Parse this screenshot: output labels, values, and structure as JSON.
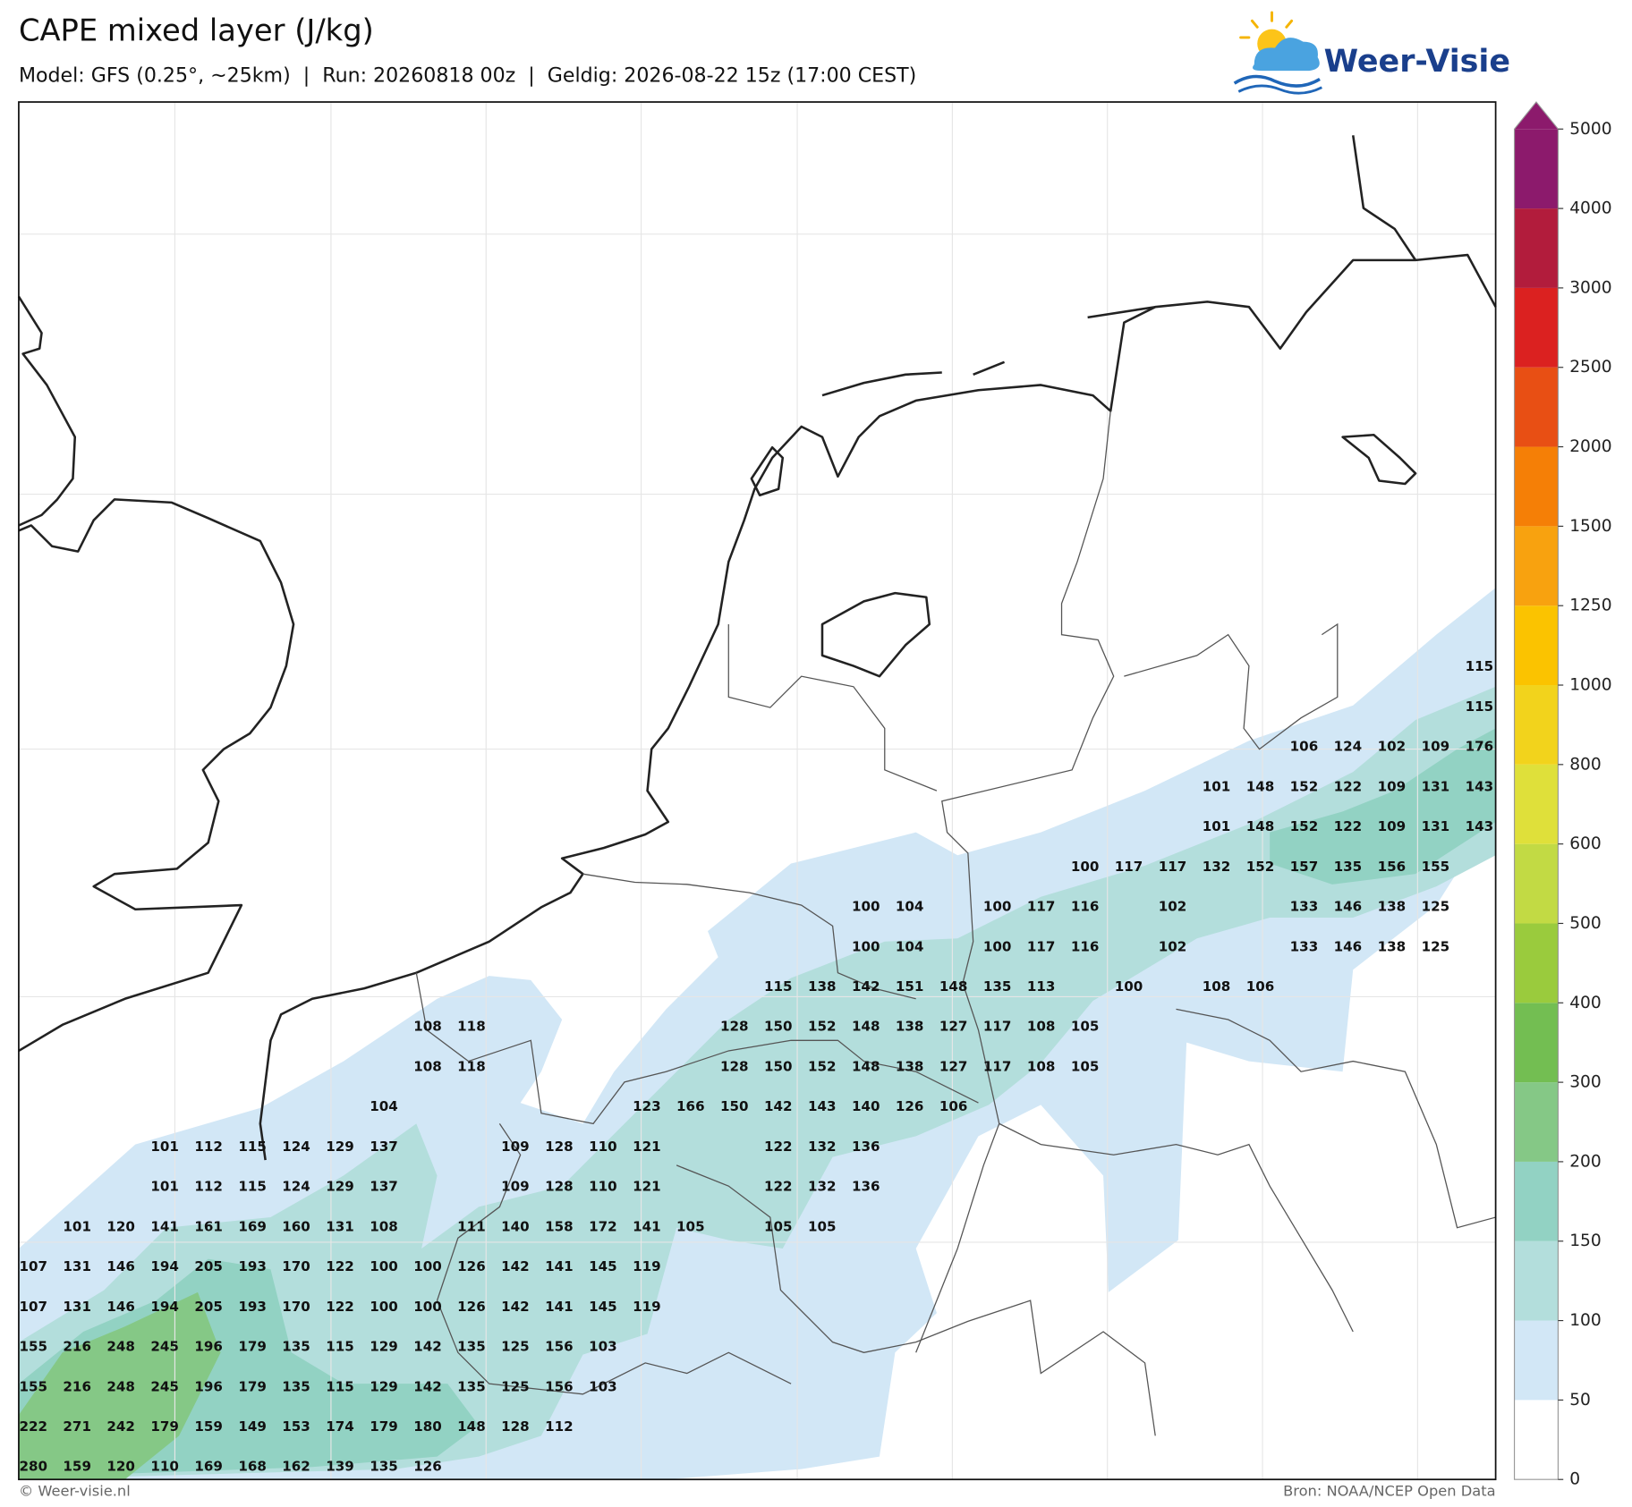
{
  "header": {
    "title": "CAPE mixed layer (J/kg)",
    "subtitle": "Model: GFS (0.25°, ~25km)  |  Run: 20260818 00z  |  Geldig: 2026-08-22 15z (17:00 CEST)",
    "logo": "Weer-Visie"
  },
  "map": {
    "grid_labels": [
      [
        null,
        null,
        null,
        null,
        null,
        null,
        null,
        null,
        null,
        null,
        null,
        null,
        null,
        null,
        null,
        null,
        null,
        null,
        null,
        null,
        null,
        null,
        null,
        null,
        null,
        null,
        null,
        null,
        null,
        null,
        null,
        null,
        null,
        115
      ],
      [
        null,
        null,
        null,
        null,
        null,
        null,
        null,
        null,
        null,
        null,
        null,
        null,
        null,
        null,
        null,
        null,
        null,
        null,
        null,
        null,
        null,
        null,
        null,
        null,
        null,
        null,
        null,
        null,
        null,
        null,
        null,
        null,
        null,
        115
      ],
      [
        null,
        null,
        null,
        null,
        null,
        null,
        null,
        null,
        null,
        null,
        null,
        null,
        null,
        null,
        null,
        null,
        null,
        null,
        null,
        null,
        null,
        null,
        null,
        null,
        null,
        null,
        null,
        null,
        null,
        106,
        124,
        102,
        109,
        176
      ],
      [
        null,
        null,
        null,
        null,
        null,
        null,
        null,
        null,
        null,
        null,
        null,
        null,
        null,
        null,
        null,
        null,
        null,
        null,
        null,
        null,
        null,
        null,
        null,
        null,
        null,
        null,
        null,
        101,
        148,
        152,
        122,
        109,
        131,
        143
      ],
      [
        null,
        null,
        null,
        null,
        null,
        null,
        null,
        null,
        null,
        null,
        null,
        null,
        null,
        null,
        null,
        null,
        null,
        null,
        null,
        null,
        null,
        null,
        null,
        null,
        null,
        null,
        null,
        101,
        148,
        152,
        122,
        109,
        131,
        143
      ],
      [
        null,
        null,
        null,
        null,
        null,
        null,
        null,
        null,
        null,
        null,
        null,
        null,
        null,
        null,
        null,
        null,
        null,
        null,
        null,
        null,
        null,
        null,
        null,
        null,
        100,
        117,
        117,
        132,
        152,
        157,
        135,
        156,
        155,
        null
      ],
      [
        null,
        null,
        null,
        null,
        null,
        null,
        null,
        null,
        null,
        null,
        null,
        null,
        null,
        null,
        null,
        null,
        null,
        null,
        null,
        100,
        104,
        null,
        100,
        117,
        116,
        null,
        102,
        null,
        null,
        133,
        146,
        138,
        125,
        null
      ],
      [
        null,
        null,
        null,
        null,
        null,
        null,
        null,
        null,
        null,
        null,
        null,
        null,
        null,
        null,
        null,
        null,
        null,
        null,
        null,
        100,
        104,
        null,
        100,
        117,
        116,
        null,
        102,
        null,
        null,
        133,
        146,
        138,
        125,
        null
      ],
      [
        null,
        null,
        null,
        null,
        null,
        null,
        null,
        null,
        null,
        null,
        null,
        null,
        null,
        null,
        null,
        null,
        null,
        115,
        138,
        142,
        151,
        148,
        135,
        113,
        null,
        100,
        null,
        108,
        106,
        null,
        null,
        null,
        null,
        null
      ],
      [
        null,
        null,
        null,
        null,
        null,
        null,
        null,
        null,
        null,
        108,
        118,
        null,
        null,
        null,
        null,
        null,
        128,
        150,
        152,
        148,
        138,
        127,
        117,
        108,
        105,
        null,
        null,
        null,
        null,
        null,
        null,
        null,
        null,
        null
      ],
      [
        null,
        null,
        null,
        null,
        null,
        null,
        null,
        null,
        null,
        108,
        118,
        null,
        null,
        null,
        null,
        null,
        128,
        150,
        152,
        148,
        138,
        127,
        117,
        108,
        105,
        null,
        null,
        null,
        null,
        null,
        null,
        null,
        null,
        null
      ],
      [
        null,
        null,
        null,
        null,
        null,
        null,
        null,
        null,
        104,
        null,
        null,
        null,
        null,
        null,
        123,
        166,
        150,
        142,
        143,
        140,
        126,
        106,
        null,
        null,
        null,
        null,
        null,
        null,
        null,
        null,
        null,
        null,
        null,
        null
      ],
      [
        null,
        null,
        null,
        101,
        112,
        115,
        124,
        129,
        137,
        null,
        null,
        109,
        128,
        110,
        121,
        null,
        null,
        122,
        132,
        136,
        null,
        null,
        null,
        null,
        null,
        null,
        null,
        null,
        null,
        null,
        null,
        null,
        null,
        null
      ],
      [
        null,
        null,
        null,
        101,
        112,
        115,
        124,
        129,
        137,
        null,
        null,
        109,
        128,
        110,
        121,
        null,
        null,
        122,
        132,
        136,
        null,
        null,
        null,
        null,
        null,
        null,
        null,
        null,
        null,
        null,
        null,
        null,
        null,
        null
      ],
      [
        null,
        101,
        120,
        141,
        161,
        169,
        160,
        131,
        108,
        null,
        111,
        140,
        158,
        172,
        141,
        105,
        null,
        105,
        105,
        null,
        null,
        null,
        null,
        null,
        null,
        null,
        null,
        null,
        null,
        null,
        null,
        null,
        null,
        null
      ],
      [
        107,
        131,
        146,
        194,
        205,
        193,
        170,
        122,
        100,
        100,
        126,
        142,
        141,
        145,
        119,
        null,
        null,
        null,
        null,
        null,
        null,
        null,
        null,
        null,
        null,
        null,
        null,
        null,
        null,
        null,
        null,
        null,
        null,
        null
      ],
      [
        107,
        131,
        146,
        194,
        205,
        193,
        170,
        122,
        100,
        100,
        126,
        142,
        141,
        145,
        119,
        null,
        null,
        null,
        null,
        null,
        null,
        null,
        null,
        null,
        null,
        null,
        null,
        null,
        null,
        null,
        null,
        null,
        null,
        null
      ],
      [
        155,
        216,
        248,
        245,
        196,
        179,
        135,
        115,
        129,
        142,
        135,
        125,
        156,
        103,
        null,
        null,
        null,
        null,
        null,
        null,
        null,
        null,
        null,
        null,
        null,
        null,
        null,
        null,
        null,
        null,
        null,
        null,
        null,
        null
      ],
      [
        155,
        216,
        248,
        245,
        196,
        179,
        135,
        115,
        129,
        142,
        135,
        125,
        156,
        103,
        null,
        null,
        null,
        null,
        null,
        null,
        null,
        null,
        null,
        null,
        null,
        null,
        null,
        null,
        null,
        null,
        null,
        null,
        null,
        null
      ],
      [
        222,
        271,
        242,
        179,
        159,
        149,
        153,
        174,
        179,
        180,
        148,
        128,
        112,
        null,
        null,
        null,
        null,
        null,
        null,
        null,
        null,
        null,
        null,
        null,
        null,
        null,
        null,
        null,
        null,
        null,
        null,
        null,
        null,
        null
      ],
      [
        280,
        159,
        120,
        110,
        169,
        168,
        162,
        139,
        135,
        126,
        null,
        null,
        null,
        null,
        null,
        null,
        null,
        null,
        null,
        null,
        null,
        null,
        null,
        null,
        null,
        null,
        null,
        null,
        null,
        null,
        null,
        null,
        null,
        null
      ]
    ]
  },
  "colorbar": {
    "levels": [
      0,
      50,
      100,
      150,
      200,
      300,
      400,
      500,
      600,
      800,
      1000,
      1250,
      1500,
      2000,
      2500,
      3000,
      4000,
      5000
    ],
    "colors": [
      "#ffffff",
      "#d2e7f6",
      "#b3dedc",
      "#92d2c3",
      "#85c886",
      "#73be52",
      "#9acb3d",
      "#c2da44",
      "#dfe03a",
      "#f2d31c",
      "#fbc300",
      "#f8a20f",
      "#f57f06",
      "#e84f14",
      "#db2120",
      "#b21c3c",
      "#8c1a6c"
    ],
    "extend_color": "#8c1a6c"
  },
  "footer": {
    "copyright": "© Weer-visie.nl",
    "source": "Bron: NOAA/NCEP Open Data"
  }
}
